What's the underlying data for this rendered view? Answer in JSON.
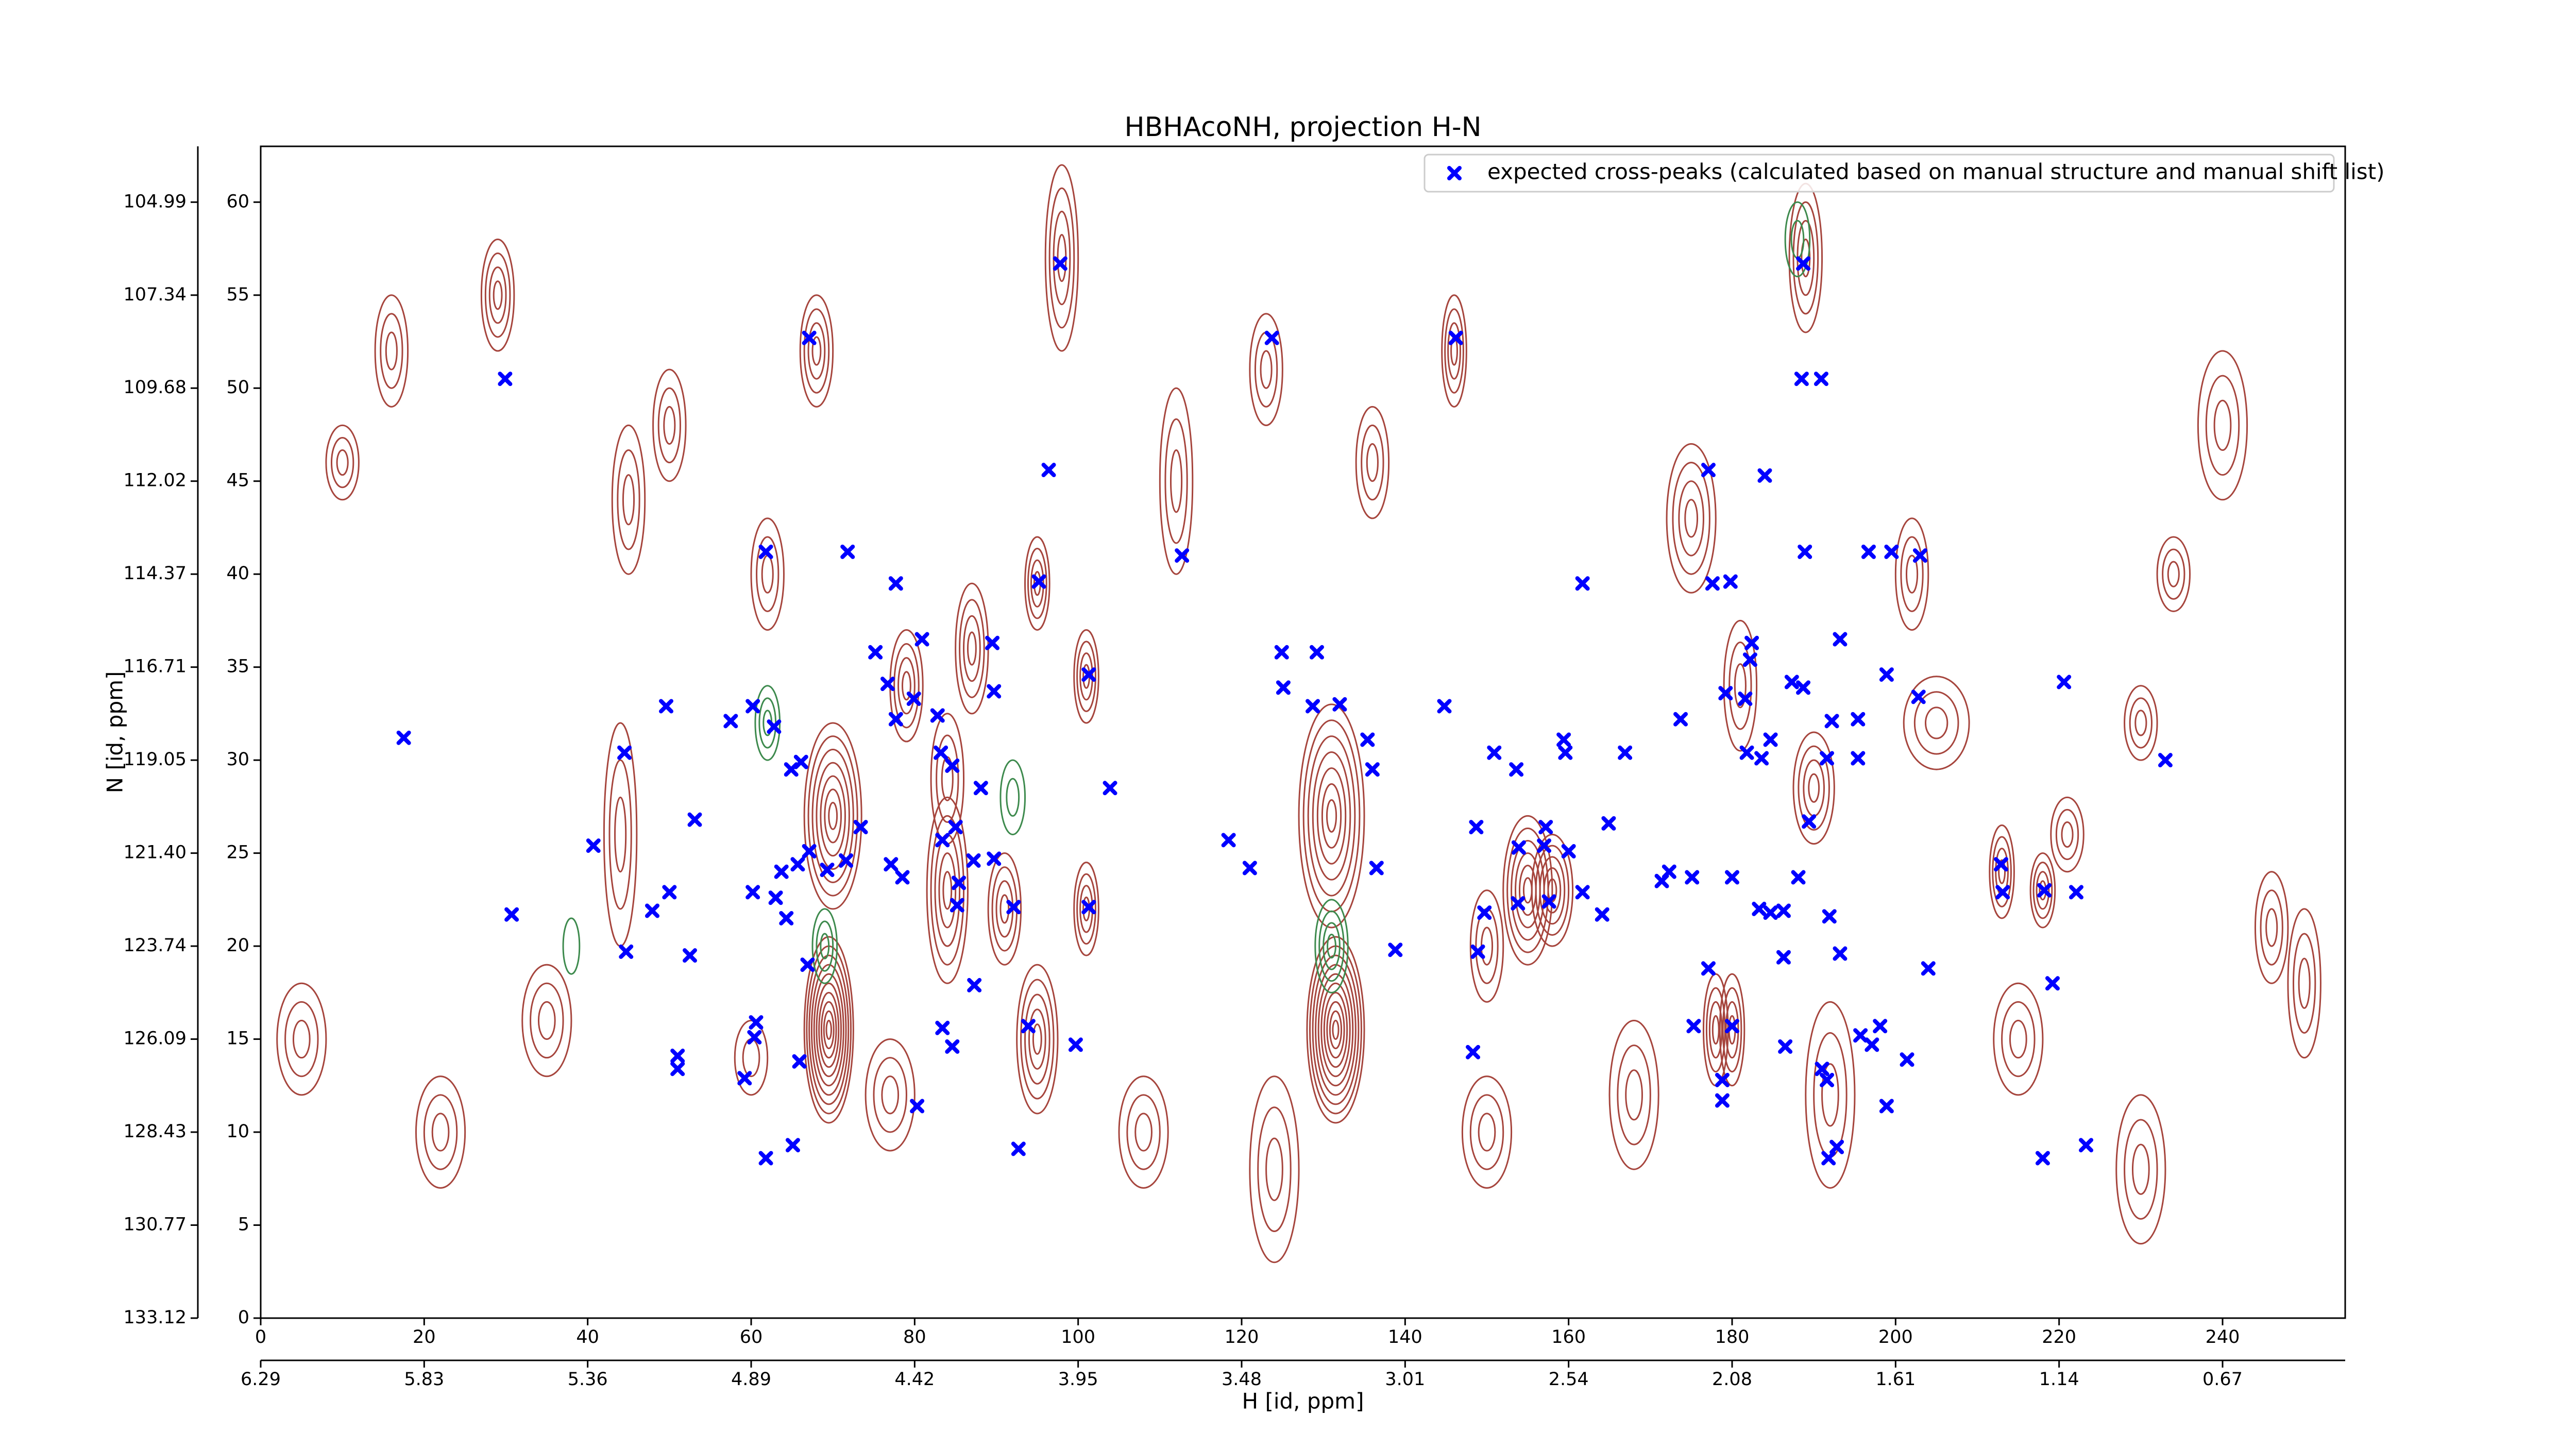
{
  "chart_data": {
    "type": "contour",
    "title": "HBHAcoNH, projection H-N",
    "xlabel": "H [id, ppm]",
    "ylabel": "N [id, ppm]",
    "xlim": [
      0,
      255
    ],
    "ylim": [
      0,
      63
    ],
    "xticks": [
      0,
      20,
      40,
      60,
      80,
      100,
      120,
      140,
      160,
      180,
      200,
      220,
      240
    ],
    "yticks": [
      0,
      5,
      10,
      15,
      20,
      25,
      30,
      35,
      40,
      45,
      50,
      55,
      60
    ],
    "x2ticks": [
      {
        "value": 0,
        "label": "6.29"
      },
      {
        "value": 20,
        "label": "5.83"
      },
      {
        "value": 40,
        "label": "5.36"
      },
      {
        "value": 60,
        "label": "4.89"
      },
      {
        "value": 80,
        "label": "4.42"
      },
      {
        "value": 100,
        "label": "3.95"
      },
      {
        "value": 120,
        "label": "3.48"
      },
      {
        "value": 140,
        "label": "3.01"
      },
      {
        "value": 160,
        "label": "2.54"
      },
      {
        "value": 180,
        "label": "2.08"
      },
      {
        "value": 200,
        "label": "1.61"
      },
      {
        "value": 220,
        "label": "1.14"
      },
      {
        "value": 240,
        "label": "0.67"
      }
    ],
    "y2ticks": [
      {
        "value": 0,
        "label": "133.12"
      },
      {
        "value": 5,
        "label": "130.77"
      },
      {
        "value": 10,
        "label": "128.43"
      },
      {
        "value": 15,
        "label": "126.09"
      },
      {
        "value": 20,
        "label": "123.74"
      },
      {
        "value": 25,
        "label": "121.40"
      },
      {
        "value": 30,
        "label": "119.05"
      },
      {
        "value": 35,
        "label": "116.71"
      },
      {
        "value": 40,
        "label": "114.37"
      },
      {
        "value": 45,
        "label": "112.02"
      },
      {
        "value": 50,
        "label": "109.68"
      },
      {
        "value": 55,
        "label": "107.34"
      },
      {
        "value": 60,
        "label": "104.99"
      }
    ],
    "legend": "upper right",
    "series": [
      {
        "name": "expected cross-peaks (calculated based on manual structure and manual shift list)",
        "color": "#0000ff",
        "x": [
          29.9,
          17.5,
          67.1,
          97.8,
          96.4,
          61.8,
          71.8,
          77.7,
          95.2,
          112.7,
          123.7,
          146.2,
          188.7,
          188.5,
          190.9,
          177.1,
          184,
          177.6,
          179.8,
          188.9,
          196.7,
          199.5,
          203,
          161.7,
          124.9,
          129.2,
          125.1,
          75.2,
          80.9,
          89.5,
          89.7,
          76.7,
          79.9,
          77.7,
          82.8,
          101.3,
          49.6,
          60.2,
          62.8,
          57.5,
          44.5,
          40.7,
          53.1,
          30.7,
          47.9,
          50,
          44.7,
          52.5,
          66.1,
          64.9,
          73.4,
          67.1,
          71.6,
          69.3,
          65.7,
          63.7,
          60.2,
          63,
          64.3,
          66.9,
          77.1,
          78.5,
          83.2,
          84.6,
          88.1,
          83.4,
          85,
          87.2,
          85.4,
          85.2,
          89.7,
          92.1,
          101.3,
          103.9,
          87.3,
          83.4,
          84.6,
          93.9,
          99.7,
          80.3,
          92.7,
          60.6,
          60.4,
          65.9,
          59.2,
          51,
          51,
          65.1,
          61.8,
          118.4,
          121,
          135.4,
          136,
          128.7,
          132,
          136.5,
          138.8,
          144.8,
          150.9,
          159.4,
          159.6,
          153.6,
          148.7,
          157.2,
          153.9,
          157,
          160,
          153.8,
          157.6,
          161.7,
          149.7,
          148.9,
          148.3,
          166.9,
          164.9,
          164.1,
          173.7,
          179.2,
          181.6,
          181.8,
          183.6,
          184.7,
          182.2,
          182.4,
          187.3,
          188.7,
          192.2,
          195.4,
          191.6,
          195.4,
          193.2,
          198.9,
          202.8,
          189.4,
          171.4,
          172.3,
          175.1,
          180,
          183.3,
          184.7,
          186.3,
          188.1,
          191.9,
          177.1,
          175.3,
          180,
          178.8,
          178.8,
          186.3,
          193.2,
          186.5,
          191,
          191.6,
          195.7,
          197.1,
          198.1,
          201.4,
          198.9,
          204,
          192.8,
          191.8,
          212.9,
          213.1,
          218.2,
          222.1,
          219.2,
          218,
          223.3,
          220.6,
          233
        ],
        "y": [
          50.5,
          31.2,
          52.7,
          56.7,
          45.6,
          41.2,
          41.2,
          39.5,
          39.6,
          41,
          52.7,
          52.7,
          56.7,
          50.5,
          50.5,
          45.6,
          45.3,
          39.5,
          39.6,
          41.2,
          41.2,
          41.2,
          41,
          39.5,
          35.8,
          35.8,
          33.9,
          35.8,
          36.5,
          36.3,
          33.7,
          34.1,
          33.3,
          32.2,
          32.4,
          34.6,
          32.9,
          32.9,
          31.8,
          32.1,
          30.4,
          25.4,
          26.8,
          21.7,
          21.9,
          22.9,
          19.7,
          19.5,
          29.9,
          29.5,
          26.4,
          25.1,
          24.6,
          24.1,
          24.4,
          24,
          22.9,
          22.6,
          21.5,
          19,
          24.4,
          23.7,
          30.4,
          29.7,
          28.5,
          25.7,
          26.4,
          24.6,
          23.4,
          22.2,
          24.7,
          22.1,
          22.1,
          28.5,
          17.9,
          15.6,
          14.6,
          15.7,
          14.7,
          11.4,
          9.1,
          15.9,
          15.1,
          13.8,
          12.9,
          14.1,
          13.4,
          9.3,
          8.6,
          25.7,
          24.2,
          31.1,
          29.5,
          32.9,
          33,
          24.2,
          19.8,
          32.9,
          30.4,
          31.1,
          30.4,
          29.5,
          26.4,
          26.4,
          25.3,
          25.4,
          25.1,
          22.3,
          22.4,
          22.9,
          21.8,
          19.7,
          14.3,
          30.4,
          26.6,
          21.7,
          32.2,
          33.6,
          33.3,
          30.4,
          30.1,
          31.1,
          35.4,
          36.3,
          34.2,
          33.9,
          32.1,
          32.2,
          30.1,
          30.1,
          36.5,
          34.6,
          33.4,
          26.7,
          23.5,
          24,
          23.7,
          23.7,
          22,
          21.8,
          21.9,
          23.7,
          21.6,
          18.8,
          15.7,
          15.7,
          12.8,
          11.7,
          19.4,
          19.6,
          14.6,
          13.4,
          12.8,
          15.2,
          14.7,
          15.7,
          13.9,
          11.4,
          18.8,
          9.2,
          8.6,
          24.4,
          22.9,
          23,
          22.9,
          18,
          8.6,
          9.3,
          34.2,
          30
        ]
      }
    ],
    "contours": {
      "positive": {
        "color": "#a6453d",
        "blobs": [
          [
            69.5,
            15.5,
            3,
            5,
            10
          ],
          [
            131.5,
            15.5,
            3.5,
            5,
            10
          ],
          [
            70,
            27,
            3.5,
            5,
            7
          ],
          [
            131,
            27,
            4,
            6,
            7
          ],
          [
            95,
            15,
            2.5,
            4,
            5
          ],
          [
            178,
            15.5,
            1.5,
            3,
            4
          ],
          [
            180,
            15.5,
            1.5,
            3,
            4
          ],
          [
            155,
            23,
            3,
            4,
            6
          ],
          [
            158,
            23,
            2.5,
            3,
            5
          ],
          [
            84,
            23,
            2.5,
            5,
            5
          ],
          [
            91,
            22,
            2,
            3,
            4
          ],
          [
            101,
            22,
            1.5,
            2.5,
            4
          ],
          [
            101,
            34.5,
            1.5,
            2.5,
            4
          ],
          [
            95,
            39.5,
            1.5,
            2.5,
            4
          ],
          [
            87,
            36,
            2,
            3.5,
            4
          ],
          [
            84,
            29,
            2,
            3.5,
            3
          ],
          [
            79,
            34,
            2,
            3,
            4
          ],
          [
            68,
            52,
            2,
            3,
            4
          ],
          [
            29,
            55,
            2,
            3,
            4
          ],
          [
            50,
            48,
            2,
            3,
            3
          ],
          [
            98,
            57,
            2,
            5,
            4
          ],
          [
            175,
            43,
            3,
            4,
            4
          ],
          [
            189,
            57,
            2,
            4,
            4
          ],
          [
            190,
            28.5,
            2.5,
            3,
            4
          ],
          [
            181,
            34,
            2,
            3.5,
            3
          ],
          [
            146,
            52,
            1.5,
            3,
            4
          ],
          [
            136,
            46,
            2,
            3,
            3
          ],
          [
            123,
            51,
            2,
            3,
            3
          ],
          [
            205,
            32,
            4,
            2.5,
            3
          ],
          [
            213,
            24,
            1.5,
            2.5,
            4
          ],
          [
            218,
            23,
            1.5,
            2,
            4
          ],
          [
            221,
            26,
            2,
            2,
            3
          ],
          [
            230,
            32,
            2,
            2,
            3
          ],
          [
            234,
            40,
            2,
            2,
            3
          ],
          [
            202,
            40,
            2,
            3,
            3
          ],
          [
            246,
            21,
            2,
            3,
            3
          ],
          [
            16,
            52,
            2,
            3,
            3
          ],
          [
            10,
            46,
            2,
            2,
            3
          ],
          [
            45,
            44,
            2,
            4,
            3
          ],
          [
            44,
            26,
            2,
            6,
            3
          ],
          [
            35,
            16,
            3,
            3,
            3
          ],
          [
            60,
            14,
            2,
            2,
            2
          ],
          [
            77,
            12,
            3,
            3,
            3
          ],
          [
            108,
            10,
            3,
            3,
            3
          ],
          [
            124,
            8,
            3,
            5,
            3
          ],
          [
            150,
            10,
            3,
            3,
            3
          ],
          [
            168,
            12,
            3,
            4,
            3
          ],
          [
            192,
            12,
            3,
            5,
            3
          ],
          [
            215,
            15,
            3,
            3,
            3
          ],
          [
            230,
            8,
            3,
            4,
            3
          ],
          [
            250,
            18,
            2,
            4,
            3
          ],
          [
            5,
            15,
            3,
            3,
            3
          ],
          [
            22,
            10,
            3,
            3,
            3
          ],
          [
            240,
            48,
            3,
            4,
            3
          ],
          [
            150,
            20,
            2,
            3,
            3
          ],
          [
            112,
            45,
            2,
            5,
            3
          ],
          [
            62,
            40,
            2,
            3,
            3
          ]
        ]
      },
      "negative": {
        "color": "#3d8a4d",
        "blobs": [
          [
            62,
            32,
            1.5,
            2,
            3
          ],
          [
            131,
            20,
            2,
            2.5,
            4
          ],
          [
            69,
            20,
            1.5,
            2,
            3
          ],
          [
            188,
            58,
            1.5,
            2,
            2
          ],
          [
            92,
            28,
            1.5,
            2,
            2
          ],
          [
            38,
            20,
            1,
            1.5,
            1
          ]
        ]
      }
    }
  }
}
